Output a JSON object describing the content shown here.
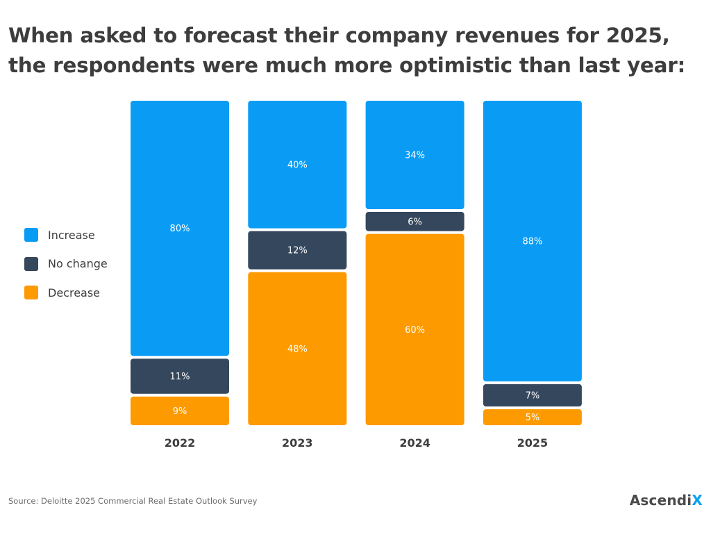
{
  "title_lines": [
    "When asked to forecast their company revenues for 2025,",
    "the respondents were much more optimistic than last year:"
  ],
  "legend": [
    {
      "label": "Increase",
      "color": "#0a9cf5"
    },
    {
      "label": "No change",
      "color": "#34475c"
    },
    {
      "label": "Decrease",
      "color": "#fd9a00"
    }
  ],
  "source": "Source: Deloitte 2025 Commercial Real Estate Outlook Survey",
  "brand": {
    "main": "Ascendi",
    "accent": "X"
  },
  "chart_data": {
    "type": "bar",
    "stacked": true,
    "categories": [
      "2022",
      "2023",
      "2024",
      "2025"
    ],
    "series": [
      {
        "name": "Increase",
        "color": "#0a9cf5",
        "values": [
          80,
          40,
          34,
          88
        ],
        "labels": [
          "80%",
          "40%",
          "34%",
          "88%"
        ]
      },
      {
        "name": "No change",
        "color": "#34475c",
        "values": [
          11,
          12,
          6,
          7
        ],
        "labels": [
          "11%",
          "12%",
          "6%",
          "7%"
        ]
      },
      {
        "name": "Decrease",
        "color": "#fd9a00",
        "values": [
          9,
          48,
          60,
          5
        ],
        "labels": [
          "9%",
          "48%",
          "60%",
          "5%"
        ]
      }
    ],
    "title": "When asked to forecast their company revenues for 2025, the respondents were much more optimistic than last year:",
    "xlabel": "",
    "ylabel": "",
    "ylim": [
      0,
      100
    ]
  }
}
